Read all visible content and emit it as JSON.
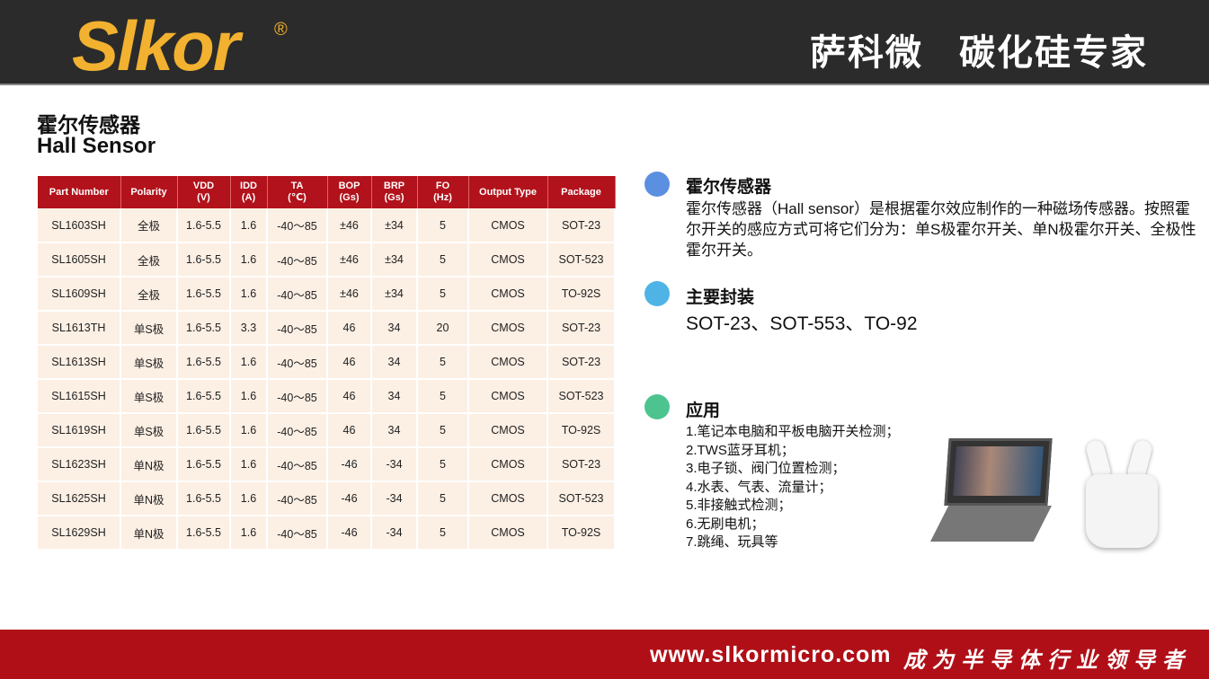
{
  "header": {
    "logo": "Slkor",
    "reg": "®",
    "brand": "萨科微",
    "tagline": "碳化硅专家"
  },
  "title": {
    "cn": "霍尔传感器",
    "en": "Hall Sensor"
  },
  "table": {
    "headers": [
      [
        "Part Number",
        ""
      ],
      [
        "Polarity",
        ""
      ],
      [
        "VDD",
        "(V)"
      ],
      [
        "IDD",
        "(A)"
      ],
      [
        "TA",
        "(℃)"
      ],
      [
        "BOP",
        "(Gs)"
      ],
      [
        "BRP",
        "(Gs)"
      ],
      [
        "FO",
        "(Hz)"
      ],
      [
        "Output Type",
        ""
      ],
      [
        "Package",
        ""
      ]
    ],
    "rows": [
      [
        "SL1603SH",
        "全极",
        "1.6-5.5",
        "1.6",
        "-40～85",
        "±46",
        "±34",
        "5",
        "CMOS",
        "SOT-23"
      ],
      [
        "SL1605SH",
        "全极",
        "1.6-5.5",
        "1.6",
        "-40～85",
        "±46",
        "±34",
        "5",
        "CMOS",
        "SOT-523"
      ],
      [
        "SL1609SH",
        "全极",
        "1.6-5.5",
        "1.6",
        "-40～85",
        "±46",
        "±34",
        "5",
        "CMOS",
        "TO-92S"
      ],
      [
        "SL1613TH",
        "单S极",
        "1.6-5.5",
        "3.3",
        "-40～85",
        "46",
        "34",
        "20",
        "CMOS",
        "SOT-23"
      ],
      [
        "SL1613SH",
        "单S极",
        "1.6-5.5",
        "1.6",
        "-40～85",
        "46",
        "34",
        "5",
        "CMOS",
        "SOT-23"
      ],
      [
        "SL1615SH",
        "单S极",
        "1.6-5.5",
        "1.6",
        "-40～85",
        "46",
        "34",
        "5",
        "CMOS",
        "SOT-523"
      ],
      [
        "SL1619SH",
        "单S极",
        "1.6-5.5",
        "1.6",
        "-40～85",
        "46",
        "34",
        "5",
        "CMOS",
        "TO-92S"
      ],
      [
        "SL1623SH",
        "单N极",
        "1.6-5.5",
        "1.6",
        "-40～85",
        "-46",
        "-34",
        "5",
        "CMOS",
        "SOT-23"
      ],
      [
        "SL1625SH",
        "单N极",
        "1.6-5.5",
        "1.6",
        "-40～85",
        "-46",
        "-34",
        "5",
        "CMOS",
        "SOT-523"
      ],
      [
        "SL1629SH",
        "单N极",
        "1.6-5.5",
        "1.6",
        "-40～85",
        "-46",
        "-34",
        "5",
        "CMOS",
        "TO-92S"
      ]
    ]
  },
  "info": {
    "s1_title": "霍尔传感器",
    "s1_text": "霍尔传感器（Hall sensor）是根据霍尔效应制作的一种磁场传感器。按照霍尔开关的感应方式可将它们分为：单S极霍尔开关、单N极霍尔开关、全极性霍尔开关。",
    "s2_title": "主要封装",
    "s2_text": "SOT-23、SOT-553、TO-92",
    "s3_title": "应用",
    "apps": [
      "1.笔记本电脑和平板电脑开关检测；",
      "2.TWS蓝牙耳机；",
      "3.电子锁、阀门位置检测；",
      "4.水表、气表、流量计；",
      "5.非接触式检测；",
      "6.无刷电机；",
      "7.跳绳、玩具等"
    ],
    "colors": [
      "#5b8fe0",
      "#4fb3e6",
      "#4dc48f"
    ]
  },
  "footer": {
    "url": "www.slkormicro.com",
    "motto": "成为半导体行业领导者"
  }
}
